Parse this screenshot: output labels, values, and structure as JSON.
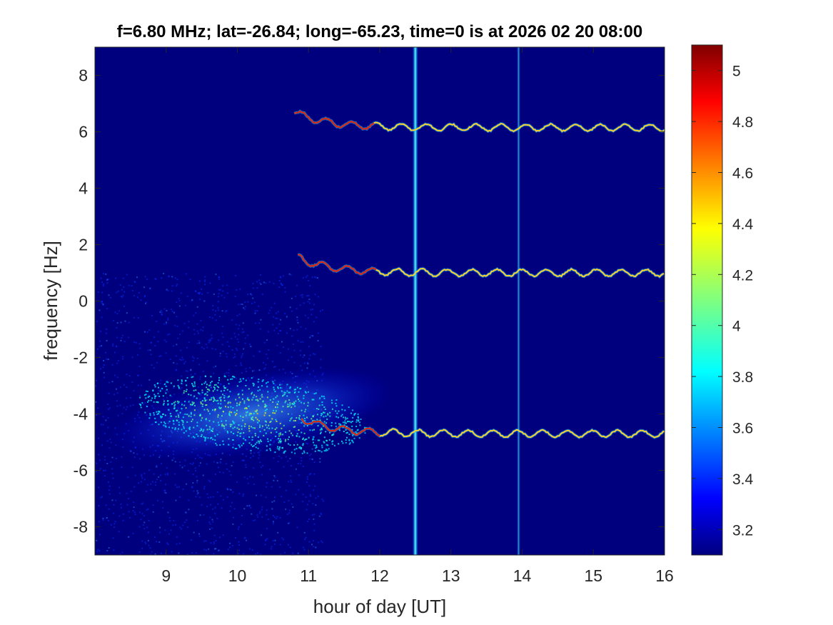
{
  "chart_data": {
    "type": "heatmap",
    "title": "f=6.80 MHz;  lat=-26.84; long=-65.23, time=0 is at 2026 02 20 08:00",
    "xlabel": "hour of day [UT]",
    "ylabel": "frequency [Hz]",
    "xlim": [
      8,
      16
    ],
    "ylim": [
      -9,
      9
    ],
    "xticks": [
      9,
      10,
      11,
      12,
      13,
      14,
      15,
      16
    ],
    "yticks": [
      8,
      6,
      4,
      2,
      0,
      -2,
      -4,
      -6,
      -8
    ],
    "colorbar": {
      "range": [
        3.1,
        5.1
      ],
      "ticks": [
        "5",
        "4.8",
        "4.6",
        "4.4",
        "4.2",
        "4",
        "3.8",
        "3.6",
        "3.4",
        "3.2"
      ],
      "tick_values": [
        5.0,
        4.8,
        4.6,
        4.4,
        4.2,
        4.0,
        3.8,
        3.6,
        3.4,
        3.2
      ],
      "colormap": "jet"
    },
    "background_color": "#00007f",
    "vertical_bands_hour": [
      12.5,
      13.95
    ],
    "traces": [
      {
        "start_hour": 10.8,
        "end_hour": 16.0,
        "mean_frequency_hz": 6.15
      },
      {
        "start_hour": 10.85,
        "end_hour": 16.0,
        "mean_frequency_hz": 1.0
      },
      {
        "start_hour": 10.9,
        "end_hour": 16.0,
        "mean_frequency_hz": -4.7
      }
    ],
    "diffuse_cloud": {
      "center_hour": 10.2,
      "center_frequency_hz": -4.0
    }
  }
}
